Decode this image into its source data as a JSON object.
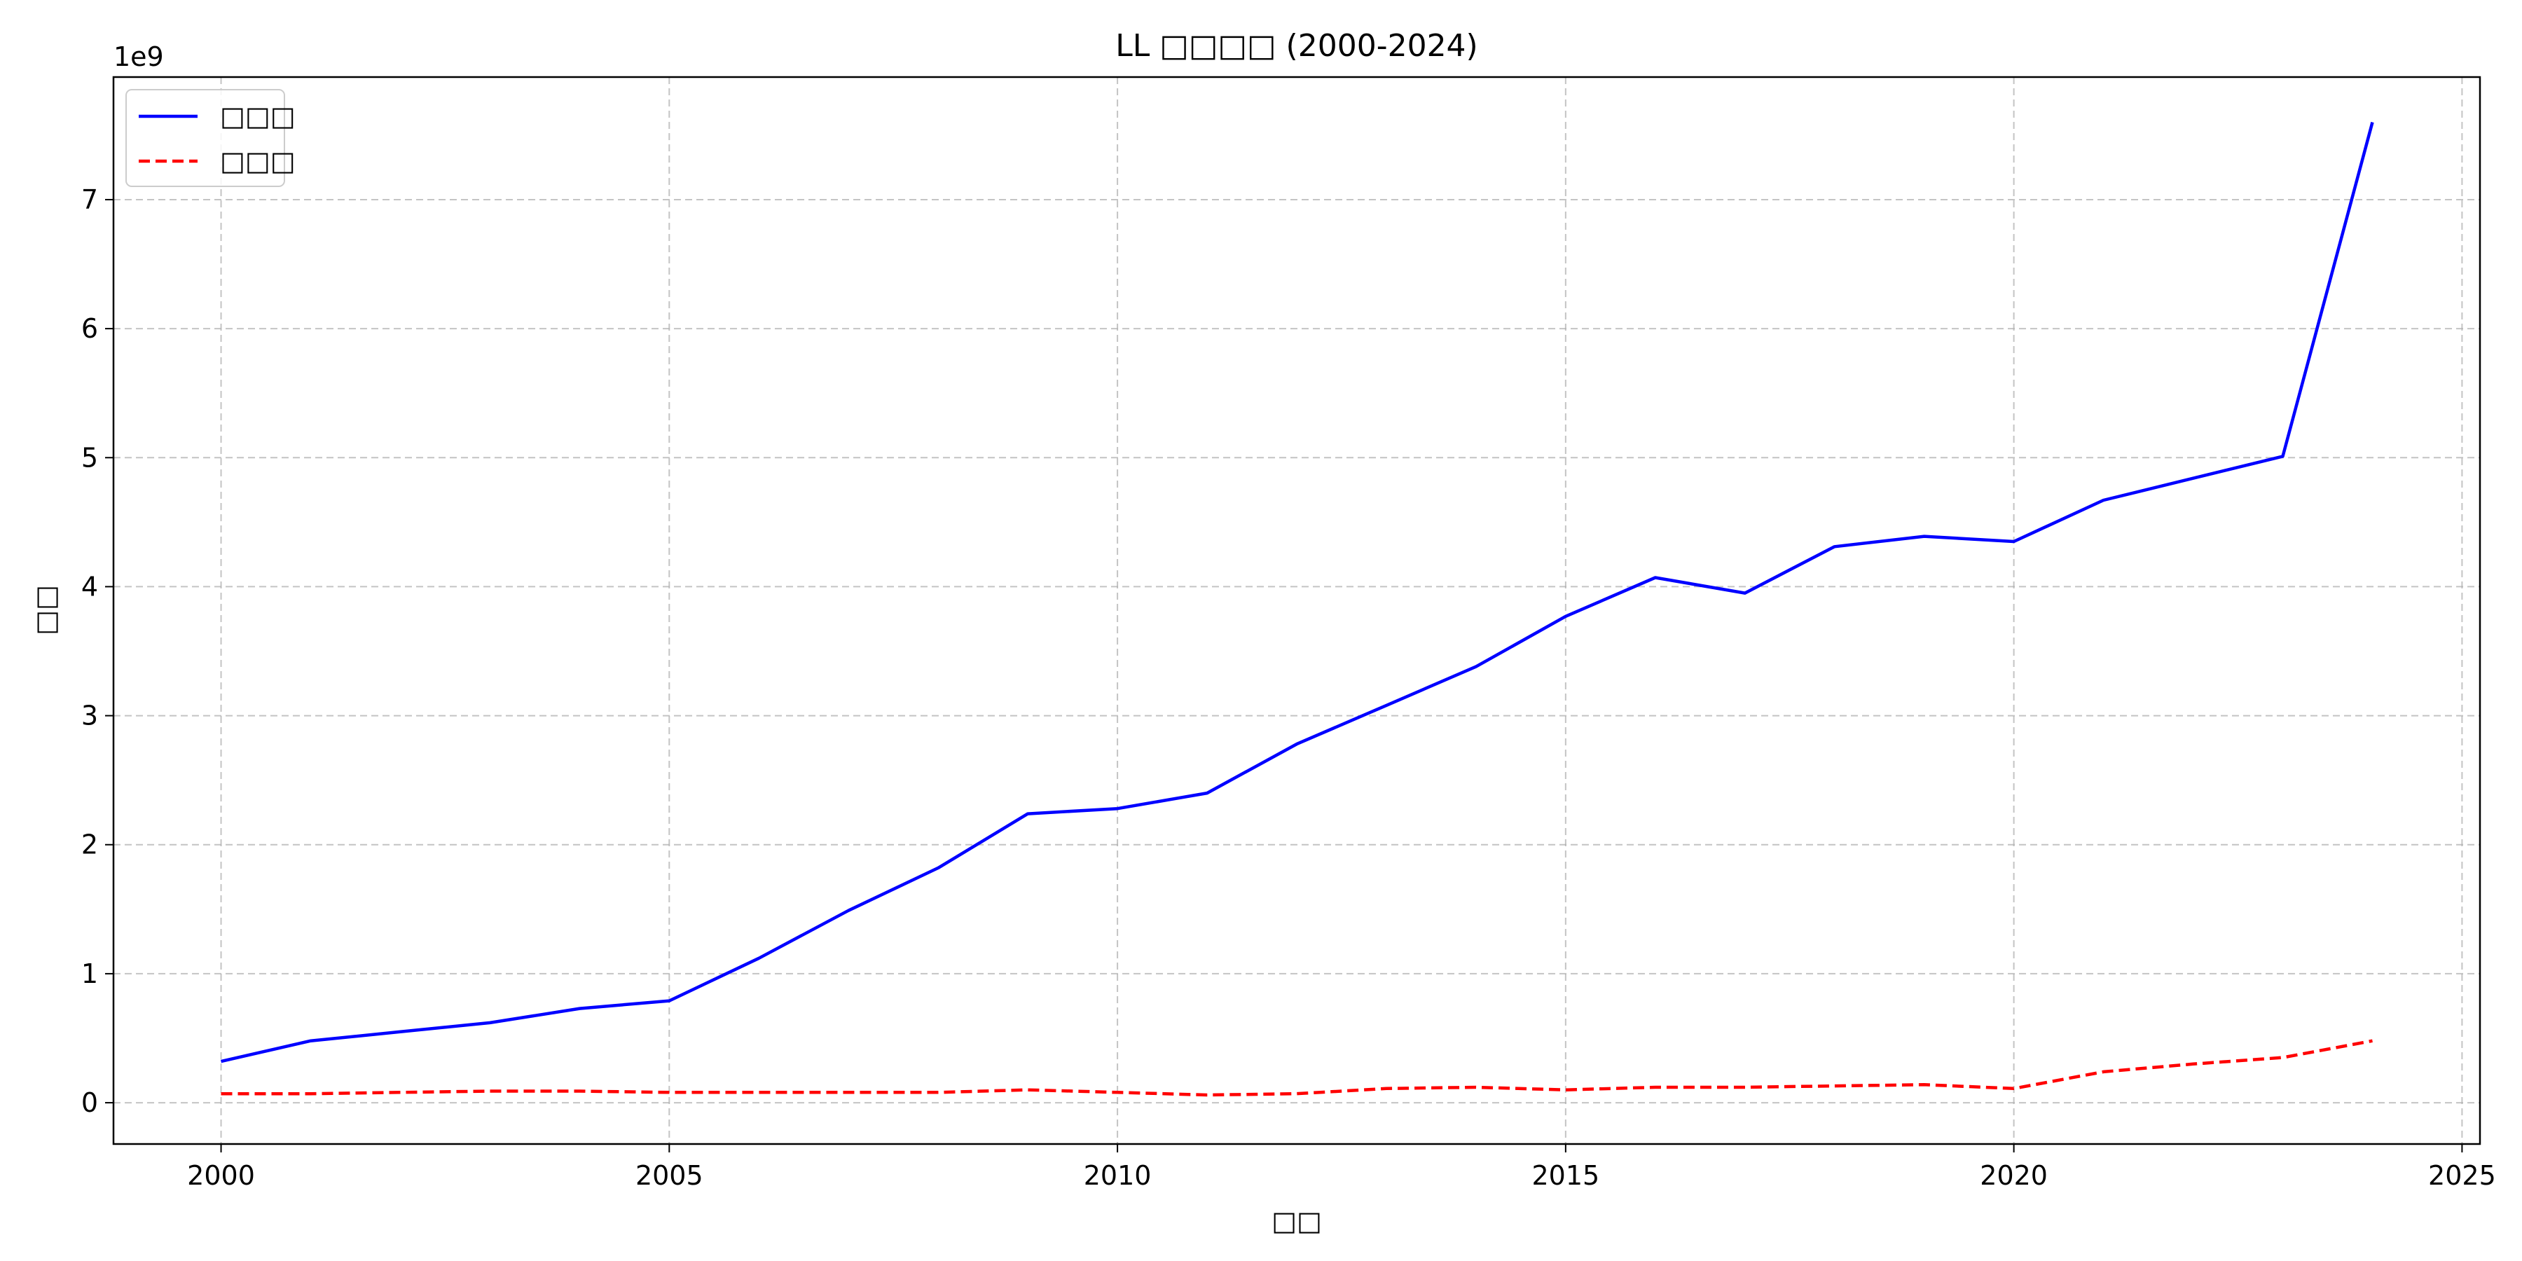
{
  "chart_data": {
    "type": "line",
    "title": "LL □□□□ (2000-2024)",
    "xlabel": "□□",
    "ylabel": "□□",
    "y_offset_label": "1e9",
    "xlim": [
      1998.8,
      2025.2
    ],
    "ylim": [
      -0.32,
      7.95
    ],
    "x_ticks": [
      2000,
      2005,
      2010,
      2015,
      2020,
      2025
    ],
    "y_ticks": [
      0,
      1,
      2,
      3,
      4,
      5,
      6,
      7
    ],
    "grid": true,
    "legend_position": "top-left",
    "x": [
      2000,
      2001,
      2002,
      2003,
      2004,
      2005,
      2006,
      2007,
      2008,
      2009,
      2010,
      2011,
      2012,
      2013,
      2014,
      2015,
      2016,
      2017,
      2018,
      2019,
      2020,
      2021,
      2022,
      2023,
      2024
    ],
    "series": [
      {
        "name": "□□□",
        "color": "#0000ff",
        "style": "solid",
        "values": [
          0.32,
          0.48,
          0.55,
          0.62,
          0.73,
          0.79,
          1.12,
          1.49,
          1.82,
          2.24,
          2.28,
          2.4,
          2.78,
          3.08,
          3.38,
          3.77,
          4.07,
          3.95,
          4.31,
          4.39,
          4.35,
          4.67,
          4.84,
          5.01,
          7.6
        ]
      },
      {
        "name": "□□□",
        "color": "#ff0000",
        "style": "dashed",
        "values": [
          0.07,
          0.07,
          0.08,
          0.09,
          0.09,
          0.08,
          0.08,
          0.08,
          0.08,
          0.1,
          0.08,
          0.06,
          0.07,
          0.11,
          0.12,
          0.1,
          0.12,
          0.12,
          0.13,
          0.14,
          0.11,
          0.24,
          0.3,
          0.35,
          0.48
        ]
      }
    ]
  }
}
